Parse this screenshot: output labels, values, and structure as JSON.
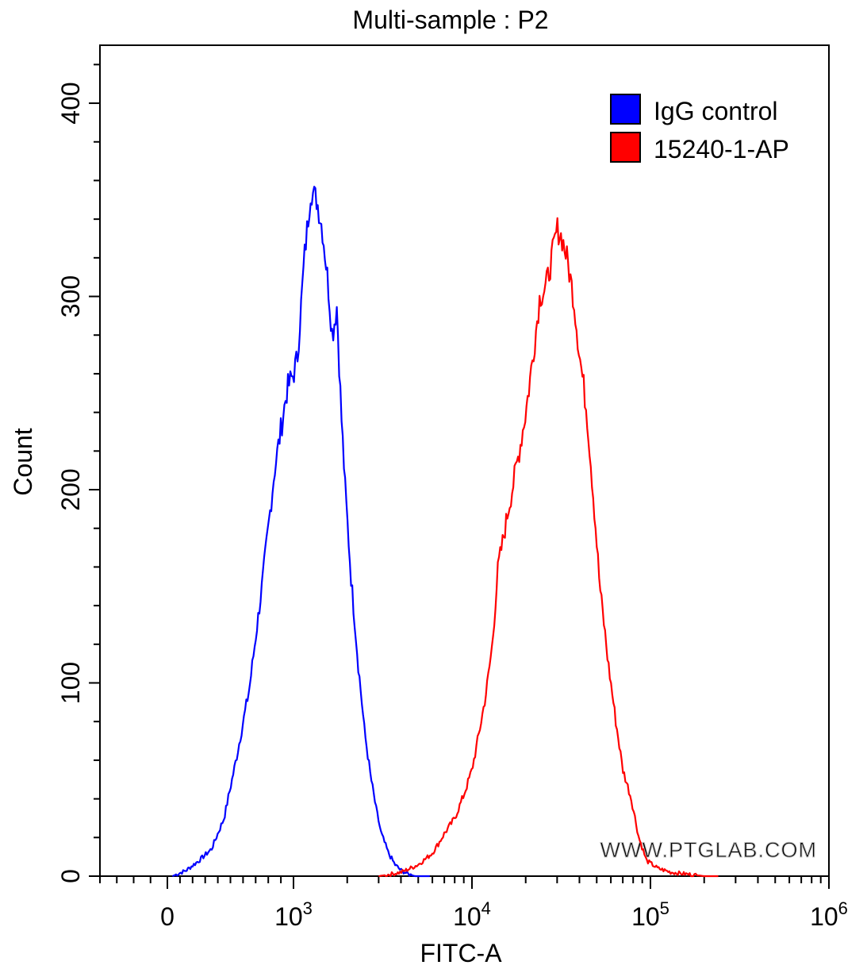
{
  "chart_data": {
    "type": "line",
    "title": "Multi-sample : P2",
    "xlabel": "FITC-A",
    "ylabel": "Count",
    "x_scale": "biexponential",
    "xlim": [
      -400,
      1000000
    ],
    "ylim": [
      0,
      430
    ],
    "grid": false,
    "legend_position": "top-right",
    "x_ticks": [
      {
        "value": 0,
        "label": "0"
      },
      {
        "value": 1000,
        "label": "10",
        "exp": "3"
      },
      {
        "value": 10000,
        "label": "10",
        "exp": "4"
      },
      {
        "value": 100000,
        "label": "10",
        "exp": "5"
      },
      {
        "value": 1000000,
        "label": "10",
        "exp": "6"
      }
    ],
    "y_ticks": [
      0,
      100,
      200,
      300,
      400
    ],
    "watermark": "WWW.PTGLAB.COM",
    "series": [
      {
        "name": "IgG control",
        "color": "#0000ff",
        "x": [
          40,
          150,
          250,
          350,
          450,
          550,
          650,
          750,
          850,
          950,
          1050,
          1150,
          1250,
          1350,
          1450,
          1550,
          1650,
          1750,
          1850,
          1950,
          2100,
          2300,
          2500,
          2700,
          2900,
          3100,
          3400,
          3700,
          4000,
          4400,
          4800,
          5300,
          5800
        ],
        "y": [
          0,
          3,
          8,
          14,
          30,
          62,
          97,
          150,
          210,
          252,
          268,
          320,
          355,
          350,
          335,
          310,
          280,
          295,
          240,
          200,
          155,
          110,
          75,
          52,
          35,
          22,
          12,
          6,
          3,
          1,
          0,
          0,
          0
        ]
      },
      {
        "name": "15240-1-AP",
        "color": "#ff0000",
        "x": [
          3000,
          4000,
          5000,
          6000,
          7000,
          8000,
          9000,
          10000,
          11000,
          12000,
          13000,
          14000,
          15000,
          16000,
          18000,
          20000,
          22000,
          24000,
          26000,
          28000,
          30000,
          32000,
          34000,
          37000,
          40000,
          44000,
          48000,
          52000,
          58000,
          64000,
          70000,
          78000,
          86000,
          95000,
          110000,
          130000,
          160000,
          200000,
          240000
        ],
        "y": [
          0,
          2,
          6,
          12,
          22,
          30,
          42,
          55,
          75,
          95,
          120,
          160,
          175,
          190,
          215,
          240,
          270,
          300,
          305,
          320,
          335,
          330,
          320,
          300,
          270,
          240,
          195,
          150,
          110,
          80,
          55,
          40,
          20,
          8,
          4,
          2,
          1,
          0,
          0
        ]
      }
    ]
  }
}
